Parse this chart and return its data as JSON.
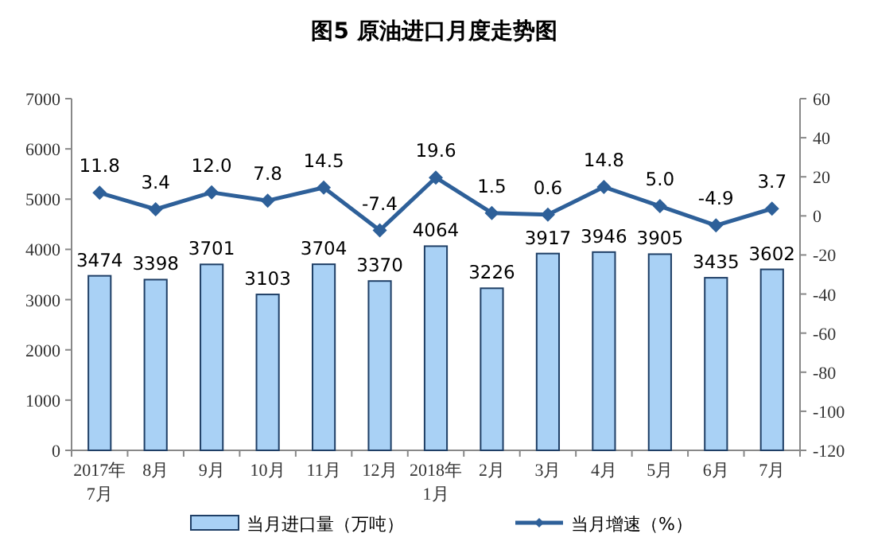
{
  "chart_data": {
    "type": "bar",
    "title": "图5  原油进口月度走势图",
    "categories": [
      "2017年\n7月",
      "8月",
      "9月",
      "10月",
      "11月",
      "12月",
      "2018年\n1月",
      "2月",
      "3月",
      "4月",
      "5月",
      "6月",
      "7月"
    ],
    "series": [
      {
        "name": "当月进口量（万吨）",
        "color": "#a9d1f5",
        "values": [
          3474,
          3398,
          3701,
          3103,
          3704,
          3370,
          4064,
          3226,
          3917,
          3946,
          3905,
          3435,
          3602
        ]
      },
      {
        "name": "当月增速（%）",
        "type": "line",
        "axis": "y2",
        "color": "#2e6099",
        "marker": "diamond",
        "values": [
          11.8,
          3.4,
          12.0,
          7.8,
          14.5,
          -7.4,
          19.6,
          1.5,
          0.6,
          14.8,
          5.0,
          -4.9,
          3.7
        ],
        "value_labels": [
          "11.8",
          "3.4",
          "12.0",
          "7.8",
          "14.5",
          "-7.4",
          "19.6",
          "1.5",
          "0.6",
          "14.8",
          "5.0",
          "-4.9",
          "3.7"
        ]
      }
    ],
    "ylim": [
      0,
      7000
    ],
    "yticks": [
      0,
      1000,
      2000,
      3000,
      4000,
      5000,
      6000,
      7000
    ],
    "y2lim": [
      -120,
      60
    ],
    "y2ticks": [
      -120,
      -100,
      -80,
      -60,
      -40,
      -20,
      0,
      20,
      40,
      60
    ],
    "grid": false,
    "legend": "bottom",
    "data_labels": true
  }
}
